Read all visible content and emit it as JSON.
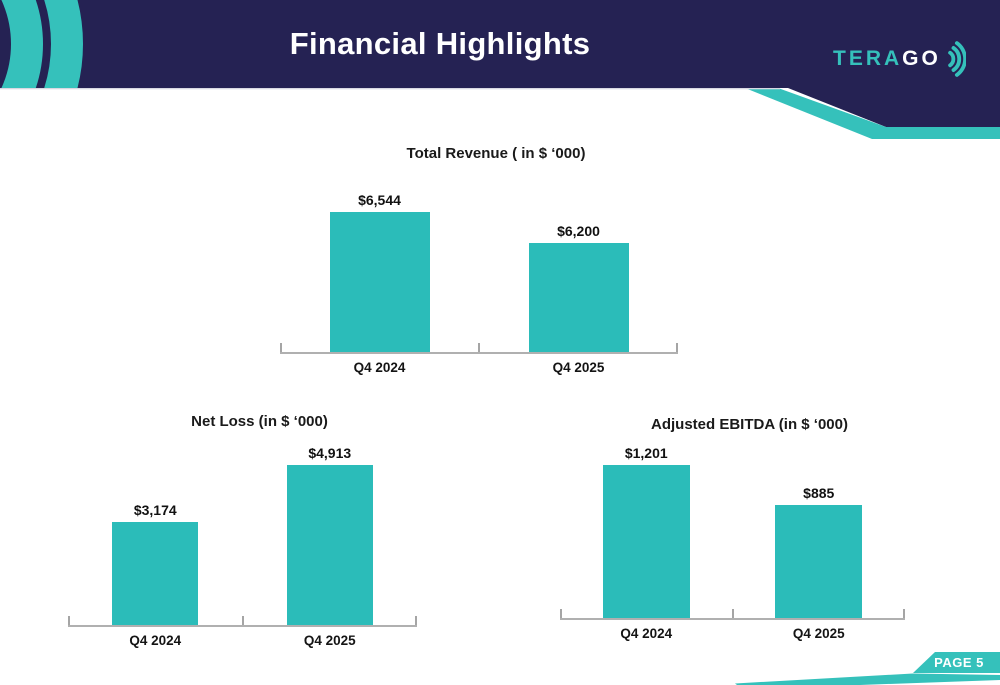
{
  "header": {
    "title": "Financial Highlights",
    "logo": {
      "tera": "TERA",
      "go": "GO"
    }
  },
  "footer": {
    "page_label": "PAGE 5"
  },
  "colors": {
    "navy": "#252253",
    "teal": "#2BBCB9",
    "accent_teal": "#35C1BB",
    "axis_line": "#B0B0B0",
    "label_text": "#111111",
    "title_text": "#FFFFFF"
  },
  "chart_data": [
    {
      "type": "bar",
      "title": "Total Revenue ( in $ ‘000)",
      "categories": [
        "Q4 2024",
        "Q4 2025"
      ],
      "values": [
        6544,
        6200
      ],
      "value_labels": [
        "$6,544",
        "$6,200"
      ],
      "ylim": [
        5000,
        7000
      ],
      "grid": false,
      "legend": false
    },
    {
      "type": "bar",
      "title": "Net Loss (in $ ‘000)",
      "categories": [
        "Q4 2024",
        "Q4 2025"
      ],
      "values": [
        3174,
        4913
      ],
      "value_labels": [
        "$3,174",
        "$4,913"
      ],
      "ylim": [
        0,
        6000
      ],
      "grid": false,
      "legend": false
    },
    {
      "type": "bar",
      "title": "Adjusted EBITDA (in $ ‘000)",
      "categories": [
        "Q4 2024",
        "Q4 2025"
      ],
      "values": [
        1201,
        885
      ],
      "value_labels": [
        "$1,201",
        "$885"
      ],
      "ylim": [
        0,
        1400
      ],
      "grid": false,
      "legend": false
    }
  ]
}
